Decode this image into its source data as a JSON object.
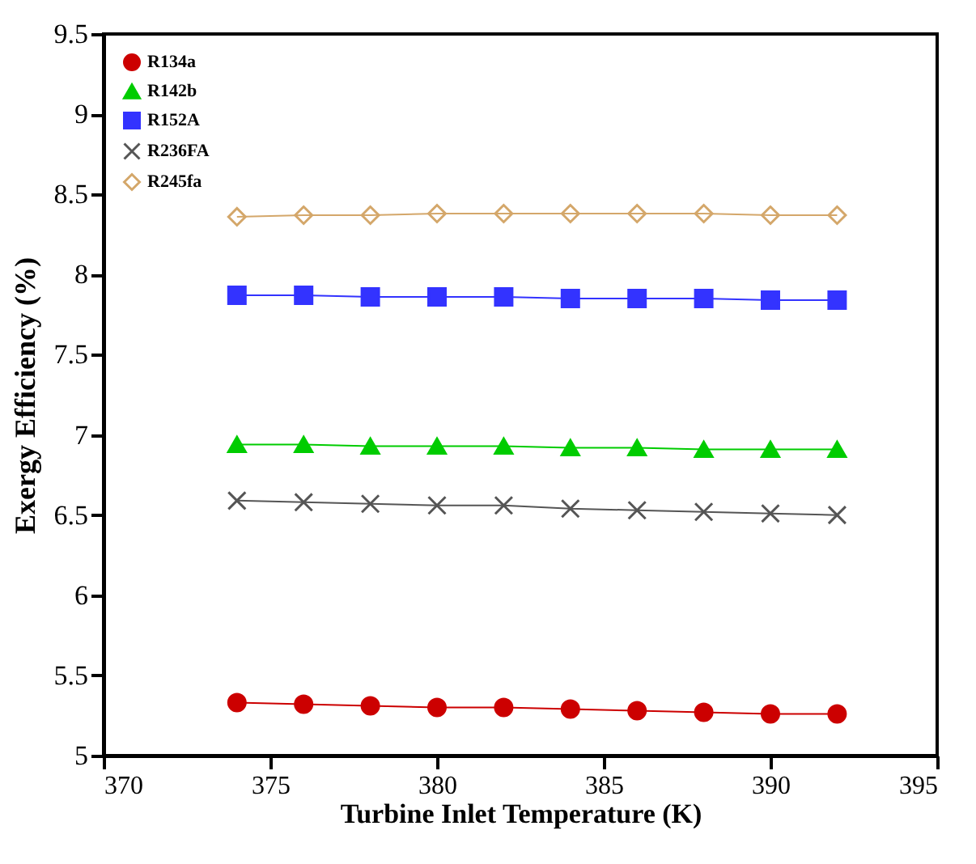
{
  "chart_data": {
    "type": "line",
    "xlabel": "Turbine Inlet Temperature (K)",
    "ylabel": "Exergy Efficiency (%)",
    "x": [
      374,
      376,
      378,
      380,
      382,
      384,
      386,
      388,
      390,
      392
    ],
    "xlim": [
      370,
      395
    ],
    "xticks": [
      370,
      375,
      380,
      385,
      390,
      395
    ],
    "ylim": [
      5,
      9.5
    ],
    "yticks": [
      5,
      5.5,
      6,
      6.5,
      7,
      7.5,
      8,
      8.5,
      9,
      9.5
    ],
    "grid": false,
    "legend": "top left",
    "series": [
      {
        "name": "R134a",
        "color": "#cc0000",
        "marker": "circle",
        "values": [
          5.33,
          5.32,
          5.31,
          5.3,
          5.3,
          5.29,
          5.28,
          5.27,
          5.26,
          5.26
        ]
      },
      {
        "name": "R142b",
        "color": "#00cc00",
        "marker": "triangle",
        "values": [
          6.94,
          6.94,
          6.93,
          6.93,
          6.93,
          6.92,
          6.92,
          6.91,
          6.91,
          6.91
        ]
      },
      {
        "name": "R152A",
        "color": "#3333ff",
        "marker": "square",
        "values": [
          7.87,
          7.87,
          7.86,
          7.86,
          7.86,
          7.85,
          7.85,
          7.85,
          7.84,
          7.84
        ]
      },
      {
        "name": "R236FA",
        "color": "#555555",
        "marker": "cross",
        "values": [
          6.59,
          6.58,
          6.57,
          6.56,
          6.56,
          6.54,
          6.53,
          6.52,
          6.51,
          6.5
        ]
      },
      {
        "name": "R245fa",
        "color": "#d4a76a",
        "marker": "diamond-open",
        "values": [
          8.36,
          8.37,
          8.37,
          8.38,
          8.38,
          8.38,
          8.38,
          8.38,
          8.37,
          8.37
        ]
      }
    ]
  }
}
